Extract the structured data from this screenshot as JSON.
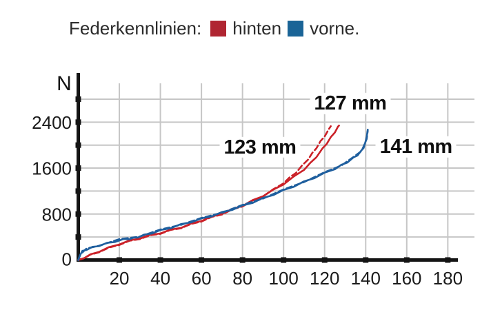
{
  "legend": {
    "title": "Federkennlinien:",
    "items": [
      {
        "label": "hinten",
        "color": "#b02632"
      },
      {
        "label": "vorne.",
        "color": "#1a6497"
      }
    ]
  },
  "colors": {
    "hinten_curve": "#cb2128",
    "vorne_curve": "#1f5f9e",
    "grid": "#c6c6c6",
    "axis": "#141414",
    "tick_label": "#1b1b1b"
  },
  "chart_data": {
    "type": "line",
    "title": "Federkennlinien",
    "ylabel": "N",
    "xlabel": "",
    "x_axis": {
      "unit": "mm",
      "min": 0,
      "max": 190,
      "ticks": [
        20,
        40,
        60,
        80,
        100,
        120,
        140,
        160,
        180
      ]
    },
    "y_axis": {
      "label": "N",
      "min": 0,
      "max": 3000,
      "grid_step": 400,
      "grid_max": 2800,
      "labeled_ticks": [
        0,
        800,
        1600,
        2400
      ]
    },
    "grid": true,
    "series": [
      {
        "name": "hinten (ends 127 mm)",
        "color": "#cb2128",
        "style": "solid",
        "points": [
          [
            0,
            0
          ],
          [
            3,
            45
          ],
          [
            6,
            90
          ],
          [
            10,
            150
          ],
          [
            15,
            215
          ],
          [
            20,
            280
          ],
          [
            25,
            332
          ],
          [
            30,
            382
          ],
          [
            35,
            428
          ],
          [
            40,
            472
          ],
          [
            45,
            520
          ],
          [
            50,
            570
          ],
          [
            55,
            625
          ],
          [
            60,
            690
          ],
          [
            65,
            748
          ],
          [
            70,
            812
          ],
          [
            75,
            880
          ],
          [
            80,
            952
          ],
          [
            85,
            1032
          ],
          [
            90,
            1120
          ],
          [
            95,
            1215
          ],
          [
            100,
            1325
          ],
          [
            105,
            1445
          ],
          [
            110,
            1580
          ],
          [
            113,
            1680
          ],
          [
            116,
            1800
          ],
          [
            119,
            1935
          ],
          [
            121,
            2030
          ],
          [
            123,
            2130
          ],
          [
            125,
            2230
          ],
          [
            126.5,
            2310
          ],
          [
            127,
            2340
          ]
        ]
      },
      {
        "name": "hinten (ends 123 mm)",
        "color": "#cb2128",
        "style": "dashed",
        "points": [
          [
            0,
            0
          ],
          [
            3,
            42
          ],
          [
            6,
            85
          ],
          [
            10,
            143
          ],
          [
            15,
            208
          ],
          [
            20,
            272
          ],
          [
            25,
            325
          ],
          [
            30,
            374
          ],
          [
            35,
            420
          ],
          [
            40,
            465
          ],
          [
            45,
            513
          ],
          [
            50,
            562
          ],
          [
            55,
            617
          ],
          [
            60,
            680
          ],
          [
            65,
            740
          ],
          [
            70,
            802
          ],
          [
            75,
            870
          ],
          [
            80,
            942
          ],
          [
            85,
            1025
          ],
          [
            90,
            1118
          ],
          [
            95,
            1222
          ],
          [
            100,
            1345
          ],
          [
            103,
            1430
          ],
          [
            106,
            1525
          ],
          [
            109,
            1635
          ],
          [
            112,
            1760
          ],
          [
            114,
            1855
          ],
          [
            116,
            1955
          ],
          [
            118,
            2060
          ],
          [
            120,
            2160
          ],
          [
            122,
            2265
          ],
          [
            123,
            2330
          ]
        ]
      },
      {
        "name": "vorne (ends 141 mm)",
        "color": "#1f5f9e",
        "style": "solid",
        "points": [
          [
            0,
            0
          ],
          [
            0.8,
            90
          ],
          [
            2,
            150
          ],
          [
            4,
            185
          ],
          [
            7,
            220
          ],
          [
            10,
            250
          ],
          [
            14,
            288
          ],
          [
            18,
            325
          ],
          [
            22,
            355
          ],
          [
            25,
            372
          ],
          [
            27,
            380
          ],
          [
            29,
            400
          ],
          [
            32,
            430
          ],
          [
            36,
            472
          ],
          [
            40,
            512
          ],
          [
            45,
            562
          ],
          [
            50,
            615
          ],
          [
            55,
            665
          ],
          [
            60,
            715
          ],
          [
            65,
            770
          ],
          [
            70,
            825
          ],
          [
            75,
            882
          ],
          [
            80,
            940
          ],
          [
            85,
            1005
          ],
          [
            90,
            1072
          ],
          [
            95,
            1140
          ],
          [
            100,
            1210
          ],
          [
            105,
            1285
          ],
          [
            110,
            1360
          ],
          [
            115,
            1435
          ],
          [
            120,
            1510
          ],
          [
            125,
            1590
          ],
          [
            128,
            1645
          ],
          [
            131,
            1705
          ],
          [
            134,
            1775
          ],
          [
            136,
            1830
          ],
          [
            138,
            1900
          ],
          [
            139,
            1960
          ],
          [
            140,
            2060
          ],
          [
            140.5,
            2160
          ],
          [
            141,
            2270
          ]
        ]
      },
      {
        "name": "vorne (ends 141 mm) run 2",
        "color": "#1f5f9e",
        "style": "dashed",
        "points": [
          [
            0,
            0
          ],
          [
            1,
            105
          ],
          [
            4,
            190
          ],
          [
            10,
            258
          ],
          [
            20,
            352
          ],
          [
            30,
            418
          ],
          [
            40,
            520
          ],
          [
            50,
            622
          ],
          [
            60,
            722
          ],
          [
            70,
            832
          ],
          [
            80,
            948
          ],
          [
            90,
            1080
          ],
          [
            100,
            1218
          ],
          [
            110,
            1368
          ],
          [
            120,
            1518
          ],
          [
            128,
            1652
          ],
          [
            134,
            1782
          ],
          [
            138,
            1908
          ],
          [
            139.5,
            2010
          ],
          [
            140.5,
            2120
          ],
          [
            141,
            2250
          ]
        ]
      }
    ],
    "annotations": [
      {
        "text": "123 mm",
        "anchor_mm": 88.5,
        "anchor_n": 1960
      },
      {
        "text": "127 mm",
        "anchor_mm": 132.5,
        "anchor_n": 2725
      },
      {
        "text": "141 mm",
        "anchor_mm": 164.5,
        "anchor_n": 1970
      }
    ]
  }
}
